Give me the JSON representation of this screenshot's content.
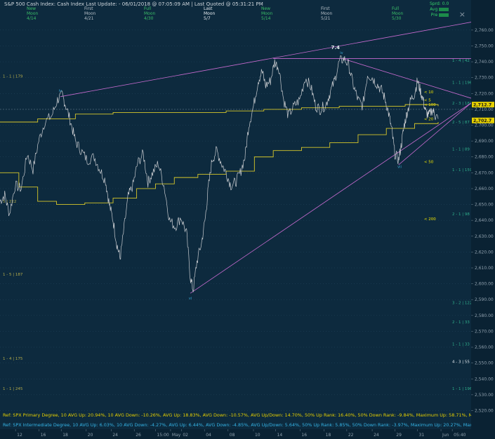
{
  "header": {
    "title": "S&P 500 Cash Index:  Cash Index  Last Update:  - 06/01/2018 @ 07:05:09 AM | Last Quoted @ 05:31:21 PM",
    "close_glyph": "×"
  },
  "moon_phases": [
    {
      "l1": "New",
      "l2": "Moon",
      "l3": "4/14",
      "color": "#3bbd68"
    },
    {
      "l1": "First",
      "l2": "Moon",
      "l3": "4/21",
      "color": "#b5bfc7"
    },
    {
      "l1": "Full",
      "l2": "Moon",
      "l3": "4/30",
      "color": "#3bbd68"
    },
    {
      "l1": "Last",
      "l2": "Moon",
      "l3": "5/7",
      "color": "#e6ecf0"
    },
    {
      "l1": "New",
      "l2": "Moon",
      "l3": "5/14",
      "color": "#3bbd68"
    },
    {
      "l1": "First",
      "l2": "Moon",
      "l3": "5/21",
      "color": "#b5bfc7"
    },
    {
      "l1": "Full",
      "l2": "Moon",
      "l3": "5/30",
      "color": "#3bbd68"
    }
  ],
  "status_box": {
    "line1": "Sprd: 0.0",
    "line2": "Avg",
    "line3": "Pre"
  },
  "stats": {
    "primary": "Ref: SPX Primary Degree, 10 AVG Up: 20.94%, 10 AVG Down: -10.26%, AVG Up: 18.83%, AVG Down: -10.57%, AVG Up/Down: 14.70%, 50%  Up Rank: 16.40%, 50% Down Rank: -9.84%, Maximum Up: 58.71%, Maximum",
    "intermediate": "Ref: SPX Intermediate Degree, 10 AVG Up: 6.03%, 10 AVG Down: -4.27%, AVG Up: 6.44%, AVG Down: -4.85%, AVG Up/Down: 5.64%, 50%  Up Rank: 5.85%, 50% Down Rank: -3.97%, Maximum Up: 20.27%, Maximum Dc"
  },
  "chart_data": {
    "type": "line",
    "y_ticks": [
      2520,
      2530,
      2540,
      2550,
      2560,
      2570,
      2580,
      2590,
      2600,
      2610,
      2620,
      2630,
      2640,
      2650,
      2660,
      2670,
      2680,
      2690,
      2700,
      2710,
      2720,
      2730,
      2740,
      2750,
      2760
    ],
    "ylim": [
      2518,
      2771
    ],
    "x_ticks": [
      {
        "label": "12",
        "x": 0.033
      },
      {
        "label": "16",
        "x": 0.083
      },
      {
        "label": "18",
        "x": 0.13
      },
      {
        "label": "20",
        "x": 0.183
      },
      {
        "label": "24",
        "x": 0.236
      },
      {
        "label": "26",
        "x": 0.285
      },
      {
        "label": "15:00",
        "x": 0.33
      },
      {
        "label": "May",
        "x": 0.362
      },
      {
        "label": "02",
        "x": 0.385
      },
      {
        "label": "04",
        "x": 0.434
      },
      {
        "label": "08",
        "x": 0.484
      },
      {
        "label": "10",
        "x": 0.538
      },
      {
        "label": "14",
        "x": 0.585
      },
      {
        "label": "16",
        "x": 0.637
      },
      {
        "label": "18",
        "x": 0.688
      },
      {
        "label": "22",
        "x": 0.736
      },
      {
        "label": "24",
        "x": 0.79
      },
      {
        "label": "29",
        "x": 0.838
      },
      {
        "label": "31",
        "x": 0.886
      },
      {
        "label": "Jun",
        "x": 0.936
      },
      {
        "label": "05:40",
        "x": 0.96
      }
    ],
    "price_path": [
      [
        0.0,
        2652
      ],
      [
        0.01,
        2656
      ],
      [
        0.02,
        2644
      ],
      [
        0.032,
        2662
      ],
      [
        0.045,
        2660
      ],
      [
        0.058,
        2682
      ],
      [
        0.07,
        2672
      ],
      [
        0.082,
        2690
      ],
      [
        0.095,
        2702
      ],
      [
        0.11,
        2706
      ],
      [
        0.122,
        2716
      ],
      [
        0.132,
        2719
      ],
      [
        0.14,
        2712
      ],
      [
        0.15,
        2702
      ],
      [
        0.16,
        2690
      ],
      [
        0.172,
        2684
      ],
      [
        0.185,
        2678
      ],
      [
        0.2,
        2680
      ],
      [
        0.212,
        2672
      ],
      [
        0.224,
        2665
      ],
      [
        0.232,
        2650
      ],
      [
        0.24,
        2640
      ],
      [
        0.248,
        2625
      ],
      [
        0.255,
        2616
      ],
      [
        0.262,
        2632
      ],
      [
        0.272,
        2655
      ],
      [
        0.282,
        2662
      ],
      [
        0.292,
        2676
      ],
      [
        0.304,
        2682
      ],
      [
        0.314,
        2664
      ],
      [
        0.324,
        2670
      ],
      [
        0.336,
        2676
      ],
      [
        0.348,
        2662
      ],
      [
        0.36,
        2640
      ],
      [
        0.372,
        2636
      ],
      [
        0.384,
        2642
      ],
      [
        0.396,
        2632
      ],
      [
        0.404,
        2604
      ],
      [
        0.41,
        2596
      ],
      [
        0.418,
        2614
      ],
      [
        0.428,
        2626
      ],
      [
        0.436,
        2642
      ],
      [
        0.442,
        2660
      ],
      [
        0.45,
        2678
      ],
      [
        0.46,
        2684
      ],
      [
        0.47,
        2676
      ],
      [
        0.48,
        2670
      ],
      [
        0.49,
        2662
      ],
      [
        0.5,
        2664
      ],
      [
        0.51,
        2670
      ],
      [
        0.52,
        2680
      ],
      [
        0.528,
        2700
      ],
      [
        0.538,
        2712
      ],
      [
        0.548,
        2728
      ],
      [
        0.556,
        2734
      ],
      [
        0.564,
        2725
      ],
      [
        0.574,
        2728
      ],
      [
        0.583,
        2740
      ],
      [
        0.592,
        2736
      ],
      [
        0.602,
        2716
      ],
      [
        0.612,
        2706
      ],
      [
        0.624,
        2712
      ],
      [
        0.636,
        2716
      ],
      [
        0.648,
        2730
      ],
      [
        0.66,
        2724
      ],
      [
        0.67,
        2712
      ],
      [
        0.68,
        2710
      ],
      [
        0.692,
        2713
      ],
      [
        0.7,
        2720
      ],
      [
        0.71,
        2728
      ],
      [
        0.72,
        2740
      ],
      [
        0.73,
        2742
      ],
      [
        0.74,
        2738
      ],
      [
        0.75,
        2725
      ],
      [
        0.76,
        2716
      ],
      [
        0.77,
        2712
      ],
      [
        0.78,
        2732
      ],
      [
        0.79,
        2730
      ],
      [
        0.8,
        2726
      ],
      [
        0.81,
        2722
      ],
      [
        0.818,
        2716
      ],
      [
        0.826,
        2706
      ],
      [
        0.832,
        2696
      ],
      [
        0.838,
        2682
      ],
      [
        0.846,
        2678
      ],
      [
        0.852,
        2688
      ],
      [
        0.858,
        2700
      ],
      [
        0.864,
        2708
      ],
      [
        0.872,
        2716
      ],
      [
        0.88,
        2720
      ],
      [
        0.886,
        2728
      ],
      [
        0.892,
        2722
      ],
      [
        0.898,
        2716
      ],
      [
        0.904,
        2708
      ],
      [
        0.91,
        2706
      ],
      [
        0.918,
        2710
      ],
      [
        0.924,
        2706
      ],
      [
        0.93,
        2704
      ]
    ],
    "ma10_path": [
      [
        0.0,
        2702
      ],
      [
        0.08,
        2704
      ],
      [
        0.16,
        2707
      ],
      [
        0.24,
        2708
      ],
      [
        0.32,
        2708
      ],
      [
        0.4,
        2708
      ],
      [
        0.48,
        2709
      ],
      [
        0.56,
        2710
      ],
      [
        0.64,
        2711
      ],
      [
        0.72,
        2712
      ],
      [
        0.8,
        2712
      ],
      [
        0.86,
        2713
      ],
      [
        0.93,
        2712
      ]
    ],
    "ma20_path": [
      [
        0.0,
        2670
      ],
      [
        0.04,
        2661
      ],
      [
        0.08,
        2652
      ],
      [
        0.12,
        2650
      ],
      [
        0.18,
        2651
      ],
      [
        0.24,
        2654
      ],
      [
        0.29,
        2660
      ],
      [
        0.33,
        2663
      ],
      [
        0.37,
        2667
      ],
      [
        0.42,
        2669
      ],
      [
        0.48,
        2671
      ],
      [
        0.54,
        2680
      ],
      [
        0.58,
        2684
      ],
      [
        0.64,
        2686
      ],
      [
        0.7,
        2689
      ],
      [
        0.76,
        2694
      ],
      [
        0.82,
        2698
      ],
      [
        0.88,
        2701
      ],
      [
        0.93,
        2702
      ]
    ],
    "trendlines": [
      {
        "from": [
          0.128,
          2718
        ],
        "to": [
          1.0,
          2765
        ],
        "color": "#c86bd0"
      },
      {
        "from": [
          0.58,
          2742
        ],
        "to": [
          1.0,
          2742
        ],
        "color": "#c86bd0"
      },
      {
        "from": [
          0.727,
          2742
        ],
        "to": [
          1.0,
          2717
        ],
        "color": "#c86bd0"
      },
      {
        "from": [
          0.404,
          2594
        ],
        "to": [
          1.0,
          2714
        ],
        "color": "#c86bd0"
      },
      {
        "from": [
          0.846,
          2675
        ],
        "to": [
          1.0,
          2714
        ],
        "color": "#c86bd0"
      }
    ],
    "cursor_hline": 2710,
    "last_prices": [
      {
        "label": "2,712.7",
        "value": 2713
      },
      {
        "label": "2,702.7",
        "value": 2703
      }
    ],
    "ma_labels": [
      {
        "label": "< 10",
        "value": 2721,
        "x": 0.9
      },
      {
        "label": "< 5",
        "value": 2716,
        "x": 0.9
      },
      {
        "label": "< 100",
        "value": 2713,
        "x": 0.9
      },
      {
        "label": "< 20",
        "value": 2704,
        "x": 0.9
      },
      {
        "label": "< 50",
        "value": 2677,
        "x": 0.9
      },
      {
        "label": "< 200",
        "value": 2641,
        "x": 0.9
      }
    ],
    "wave_labels": [
      {
        "label": "7.4",
        "x": 0.712,
        "value": 2748,
        "color": "#e6ecf0"
      },
      {
        "label": "iv",
        "x": 0.128,
        "value": 2721,
        "color": "#3aa7d4"
      },
      {
        "label": "iv",
        "x": 0.725,
        "value": 2745,
        "color": "#3aa7d4"
      },
      {
        "label": "vi",
        "x": 0.404,
        "value": 2590,
        "color": "#3aa7d4"
      },
      {
        "label": "vii",
        "x": 0.848,
        "value": 2673,
        "color": "#3aa7d4"
      }
    ],
    "fib_levels": [
      {
        "label": "1 - 1 | 179",
        "value": 2731,
        "side": "left",
        "color": "#b3ab4a"
      },
      {
        "label": "1 - 5 | 187",
        "value": 2606,
        "side": "left",
        "color": "#b3ab4a"
      },
      {
        "label": "1 - 4 | 175",
        "value": 2553,
        "side": "left",
        "color": "#b3ab4a"
      },
      {
        "label": "1 - 1 | 245",
        "value": 2534,
        "side": "left",
        "color": "#b3ab4a"
      },
      {
        "label": "5 | 222",
        "value": 2652,
        "side": "left",
        "color": "#b3ab4a"
      },
      {
        "label": "1 - 4 | 42",
        "value": 2741,
        "side": "right",
        "color": "#2fae8b"
      },
      {
        "label": "1 - 1 | 196",
        "value": 2727,
        "side": "right",
        "color": "#2fae8b"
      },
      {
        "label": "2 - 3 | 183",
        "value": 2714,
        "side": "right",
        "color": "#2fae8b"
      },
      {
        "label": "2 - 5 | 87",
        "value": 2702,
        "side": "right",
        "color": "#2fae8b"
      },
      {
        "label": "1 - 1 | 89",
        "value": 2685,
        "side": "right",
        "color": "#2fae8b"
      },
      {
        "label": "1 - 1 | 159",
        "value": 2672,
        "side": "right",
        "color": "#2fae8b"
      },
      {
        "label": "2 - 1 | 98",
        "value": 2644,
        "side": "right",
        "color": "#2fae8b"
      },
      {
        "label": "3 - 2 | 122",
        "value": 2588,
        "side": "right",
        "color": "#2fae8b"
      },
      {
        "label": "2 - 1 | 33",
        "value": 2576,
        "side": "right",
        "color": "#2fae8b"
      },
      {
        "label": "1 - 1 | 33",
        "value": 2562,
        "side": "right",
        "color": "#2fae8b"
      },
      {
        "label": "4 - 3 | 55",
        "value": 2551,
        "side": "right",
        "color": "#e6ecf0"
      },
      {
        "label": "1 - 1 | 196",
        "value": 2534,
        "side": "right",
        "color": "#2fae8b"
      }
    ],
    "colors": {
      "background": "#0d2a3e",
      "price": "#c9ccd0",
      "ma": "#d7c72a",
      "trend": "#c86bd0",
      "axis_text": "#8fa0ad",
      "last_price_box": "#e6d000"
    }
  }
}
